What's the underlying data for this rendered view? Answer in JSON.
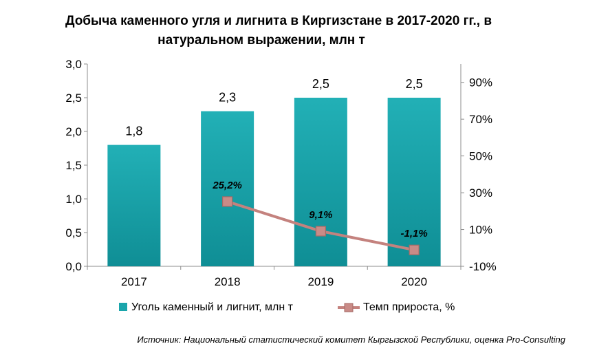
{
  "chart_data": {
    "type": "bar+line",
    "title_line1": "Добыча каменного угля и лигнита в Киргизстане в 2017-2020 гг., в",
    "title_line2": "натуральном выражении, млн т",
    "categories": [
      "2017",
      "2018",
      "2019",
      "2020"
    ],
    "series": [
      {
        "name": "Уголь каменный и лигнит, млн т",
        "type": "bar",
        "axis": "left",
        "values": [
          1.8,
          2.3,
          2.5,
          2.5
        ],
        "labels": [
          "1,8",
          "2,3",
          "2,5",
          "2,5"
        ],
        "color": "#1aa5ab"
      },
      {
        "name": "Темп прироста, %",
        "type": "line",
        "axis": "right",
        "values": [
          null,
          25.2,
          9.1,
          -1.1
        ],
        "labels": [
          "",
          "25,2%",
          "9,1%",
          "-1,1%"
        ],
        "color": "#c4827e"
      }
    ],
    "y_left": {
      "min": 0,
      "max": 3,
      "ticks": [
        "0,0",
        "0,5",
        "1,0",
        "1,5",
        "2,0",
        "2,5",
        "3,0"
      ]
    },
    "y_right": {
      "min": -10,
      "max": 100,
      "ticks": [
        "-10%",
        "10%",
        "30%",
        "50%",
        "70%",
        "90%"
      ]
    },
    "legend": "bottom",
    "source": "Источник: Национальный статистический комитет Кыргызской Республики, оценка Pro-Consulting"
  }
}
